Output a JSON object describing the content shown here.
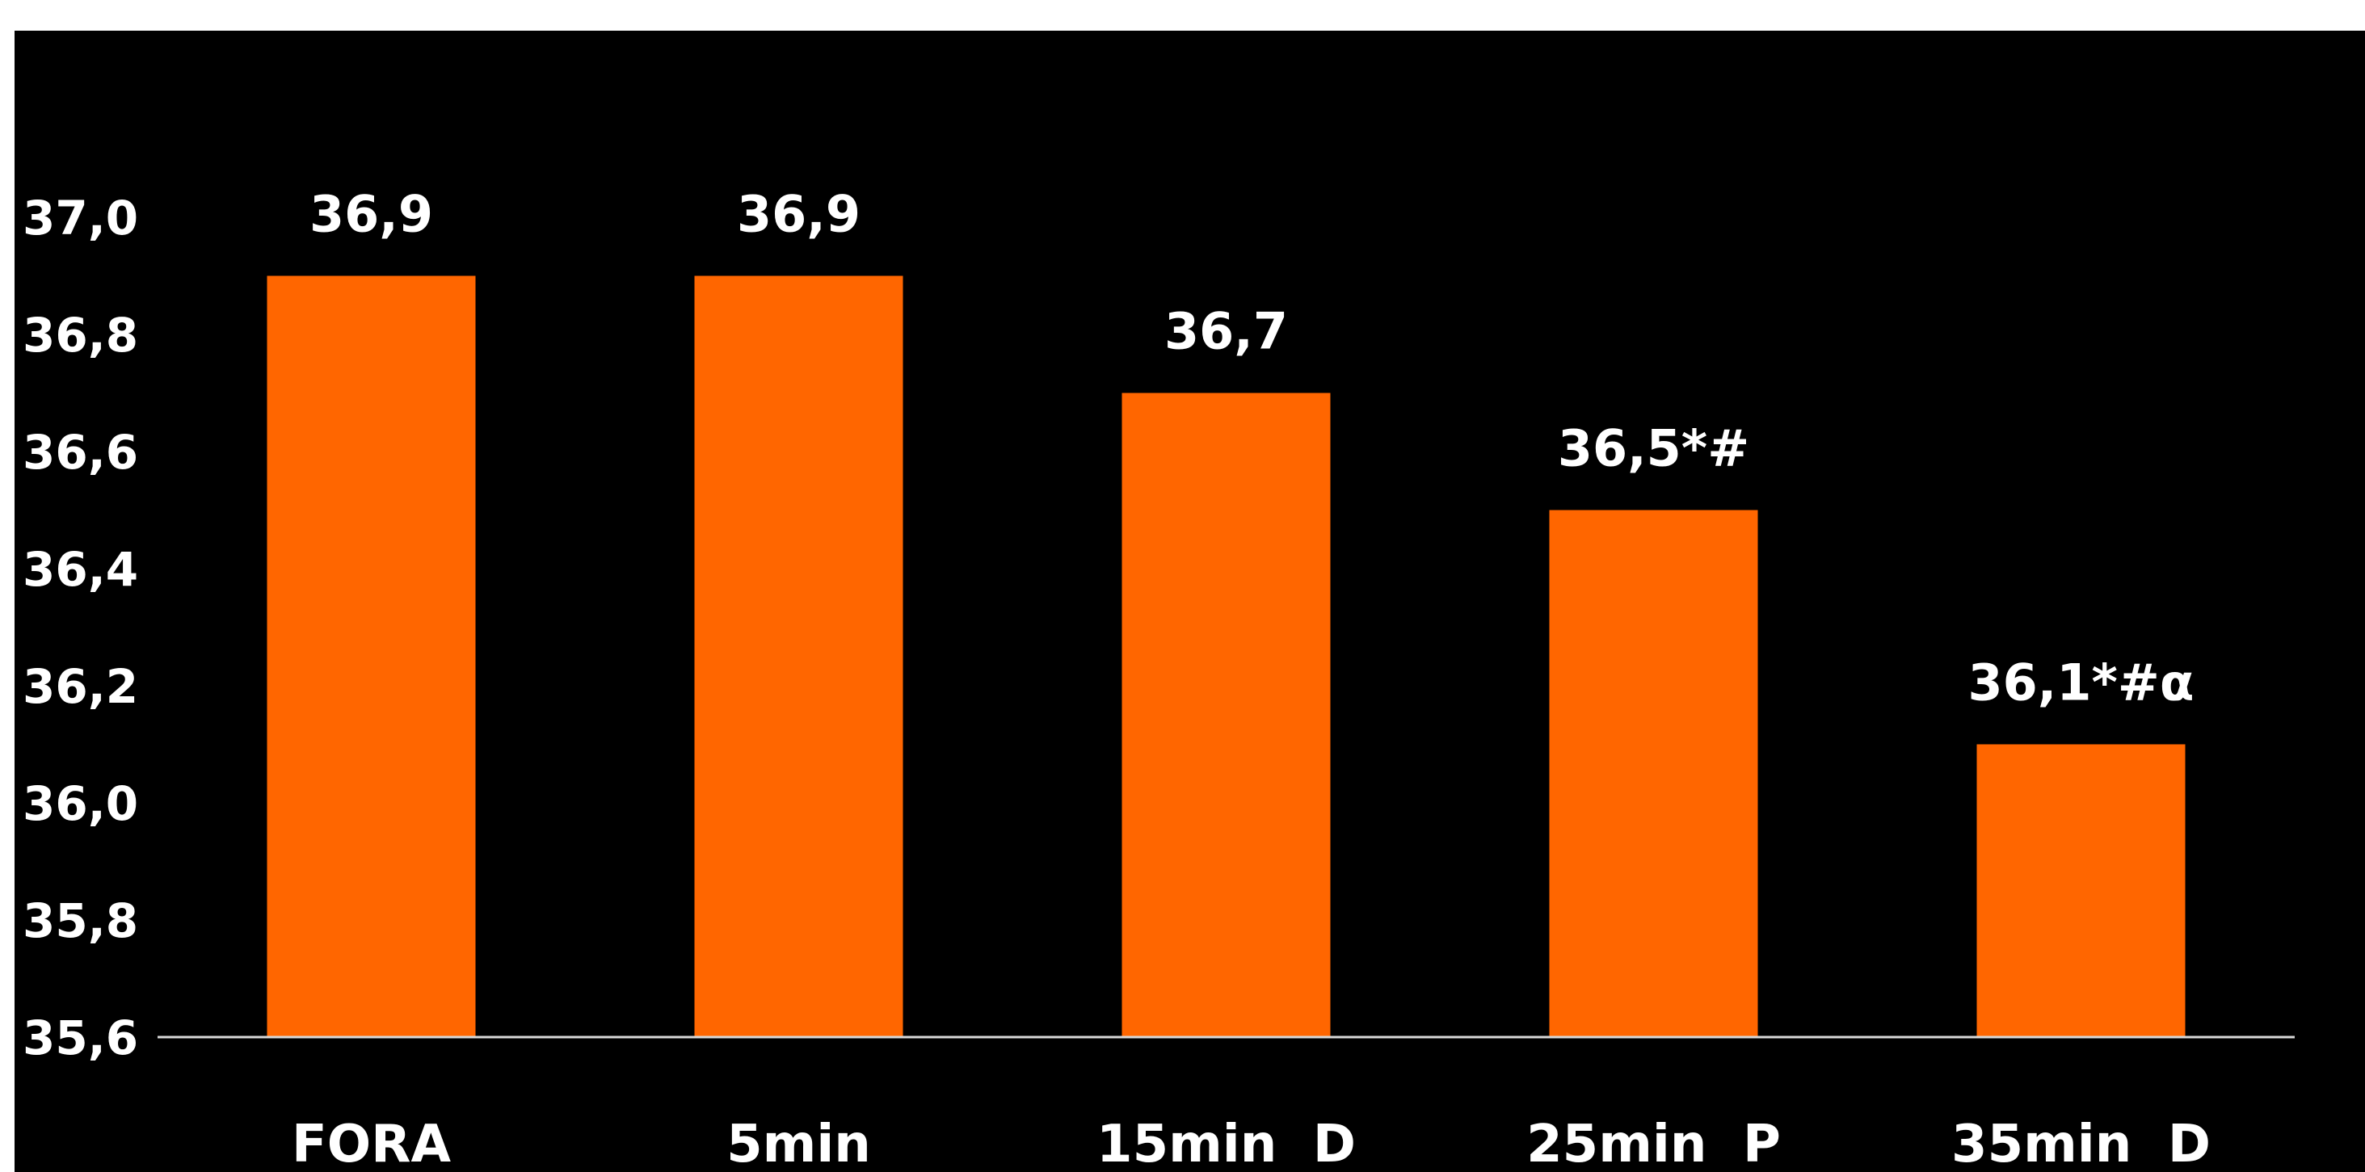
{
  "chart_data": {
    "type": "bar",
    "title": "",
    "xlabel": "",
    "ylabel": "",
    "categories": [
      "FORA",
      "5min",
      "15min  D",
      "25min  P",
      "35min  D"
    ],
    "values": [
      36.9,
      36.9,
      36.7,
      36.5,
      36.1
    ],
    "data_labels": [
      "36,9",
      "36,9",
      "36,7",
      "36,5*#",
      "36,1*#α"
    ],
    "ylim": [
      35.6,
      37.0
    ],
    "yticks": [
      37.0,
      36.8,
      36.6,
      36.4,
      36.2,
      36.0,
      35.8,
      35.6
    ],
    "ytick_labels": [
      "37,0",
      "36,8",
      "36,6",
      "36,4",
      "36,2",
      "36,0",
      "35,8",
      "35,6"
    ],
    "grid": false,
    "legend": "none",
    "bar_color": "#FF6600",
    "background_color": "#000000",
    "axis_color": "#d9d9d9",
    "text_color": "#ffffff"
  }
}
